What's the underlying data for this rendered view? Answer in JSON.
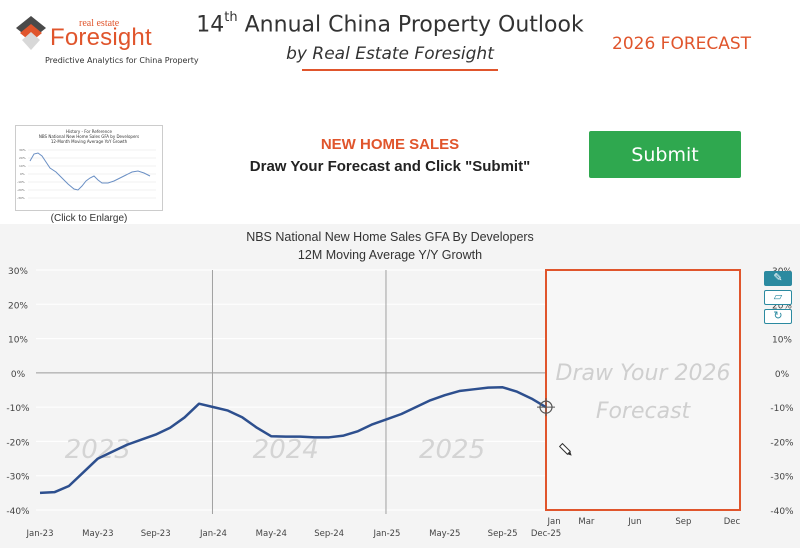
{
  "header": {
    "logo_small": "real estate",
    "logo_big": "Foresight",
    "logo_tagline": "Predictive Analytics for China Property",
    "title_prefix": "14",
    "title_sup": "th",
    "title_rest": " Annual China Property Outlook",
    "subtitle": "by Real Estate Foresight",
    "forecast_label": "2026 FORECAST"
  },
  "thumbnail": {
    "caption": "(Click to Enlarge)",
    "title_lines": [
      "History - For Reference",
      "NBS National New Home Sales GFA by Developers",
      "12-Month Moving Average YoY Growth"
    ]
  },
  "section": {
    "title": "NEW HOME SALES",
    "instruction": "Draw Your Forecast and Click \"Submit\""
  },
  "submit_label": "Submit",
  "tools": {
    "draw_icon": "pencil-square-icon",
    "erase_icon": "eraser-icon",
    "reset_icon": "refresh-icon"
  },
  "chart_data": {
    "type": "line",
    "title": "NBS National New Home Sales GFA By Developers",
    "subtitle": "12M Moving Average Y/Y Growth",
    "y_ticks": [
      "30%",
      "20%",
      "10%",
      "0%",
      "-10%",
      "-20%",
      "-30%",
      "-40%"
    ],
    "ylim": [
      -40,
      30
    ],
    "x_ticks": [
      "Jan-23",
      "May-23",
      "Sep-23",
      "Jan-24",
      "May-24",
      "Sep-24",
      "Jan-25",
      "May-25",
      "Sep-25",
      "Dec-25"
    ],
    "forecast_x_ticks": [
      "Jan",
      "Mar",
      "Jun",
      "Sep",
      "Dec"
    ],
    "year_watermarks": [
      "2023",
      "2024",
      "2025"
    ],
    "forecast_watermark": [
      "Draw Your 2026",
      "Forecast"
    ],
    "series": [
      {
        "color": "#2d4f8e",
        "x": [
          "2023-01",
          "2023-02",
          "2023-03",
          "2023-04",
          "2023-05",
          "2023-06",
          "2023-07",
          "2023-08",
          "2023-09",
          "2023-10",
          "2023-11",
          "2023-12",
          "2024-01",
          "2024-02",
          "2024-03",
          "2024-04",
          "2024-05",
          "2024-06",
          "2024-07",
          "2024-08",
          "2024-09",
          "2024-10",
          "2024-11",
          "2024-12",
          "2025-01",
          "2025-02",
          "2025-03",
          "2025-04",
          "2025-05",
          "2025-06",
          "2025-07",
          "2025-08",
          "2025-09",
          "2025-10",
          "2025-11",
          "2025-12"
        ],
        "values": [
          -35,
          -34.8,
          -33,
          -29,
          -25,
          -23,
          -21,
          -19.5,
          -18,
          -16,
          -13,
          -9,
          -10,
          -11,
          -13,
          -16,
          -18.5,
          -18.6,
          -18.6,
          -18.8,
          -18.8,
          -18.3,
          -17,
          -15,
          -13.5,
          -12,
          -10,
          -8,
          -6.5,
          -5.3,
          -4.8,
          -4.3,
          -4.2,
          -5.5,
          -7.5,
          -10
        ]
      }
    ],
    "grid": true,
    "accent_color": "#e0552c",
    "forecast_box_color": "#e0552c"
  }
}
